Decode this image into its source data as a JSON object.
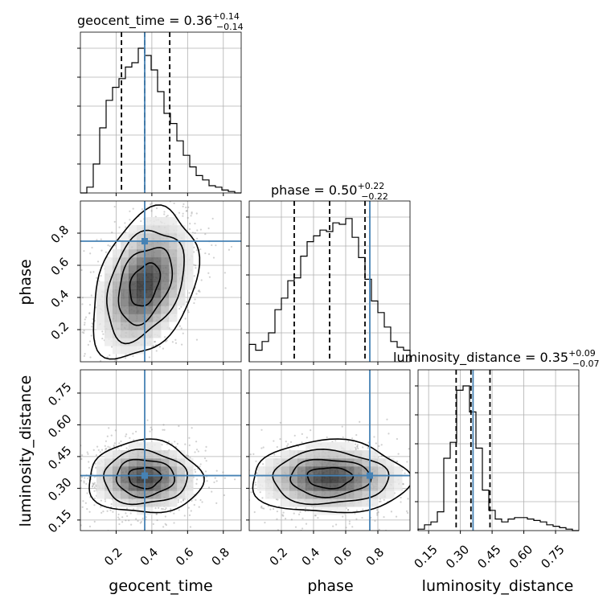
{
  "chart_data": {
    "type": "corner",
    "parameters": [
      "geocent_time",
      "phase",
      "luminosity_distance"
    ],
    "titles": [
      {
        "name": "geocent_time",
        "median": "0.36",
        "plus": "+0.14",
        "minus": "−0.14"
      },
      {
        "name": "phase",
        "median": "0.50",
        "plus": "+0.22",
        "minus": "−0.22"
      },
      {
        "name": "luminosity_distance",
        "median": "0.35",
        "plus": "+0.09",
        "minus": "−0.07"
      }
    ],
    "truths": [
      0.36,
      0.75,
      0.36
    ],
    "quantiles": [
      [
        0.23,
        0.36,
        0.5
      ],
      [
        0.28,
        0.5,
        0.72
      ],
      [
        0.28,
        0.35,
        0.44
      ]
    ],
    "ranges": [
      [
        0.0,
        0.9
      ],
      [
        0.0,
        1.0
      ],
      [
        0.1,
        0.86
      ]
    ],
    "ticks": [
      [
        "0.2",
        "0.4",
        "0.6",
        "0.8"
      ],
      [
        "0.2",
        "0.4",
        "0.6",
        "0.8"
      ],
      [
        "0.15",
        "0.30",
        "0.45",
        "0.60",
        "0.75"
      ]
    ],
    "histograms": [
      {
        "param": "geocent_time",
        "edges_start": 0.0,
        "bin_width": 0.036,
        "counts": [
          0.0,
          0.04,
          0.2,
          0.45,
          0.64,
          0.73,
          0.79,
          0.87,
          0.9,
          1.0,
          0.95,
          0.85,
          0.7,
          0.55,
          0.48,
          0.36,
          0.26,
          0.18,
          0.12,
          0.09,
          0.05,
          0.04,
          0.02,
          0.01,
          0.0
        ]
      },
      {
        "param": "phase",
        "edges_start": 0.0,
        "bin_width": 0.04,
        "counts": [
          0.12,
          0.08,
          0.14,
          0.2,
          0.36,
          0.44,
          0.56,
          0.58,
          0.73,
          0.83,
          0.87,
          0.91,
          0.9,
          0.96,
          0.95,
          0.99,
          0.86,
          0.72,
          0.57,
          0.42,
          0.34,
          0.24,
          0.14,
          0.1,
          0.08
        ]
      },
      {
        "param": "luminosity_distance",
        "edges_start": 0.1,
        "bin_width": 0.0304,
        "counts": [
          0.01,
          0.04,
          0.06,
          0.13,
          0.5,
          0.61,
          0.97,
          1.0,
          0.82,
          0.57,
          0.28,
          0.14,
          0.08,
          0.06,
          0.08,
          0.09,
          0.09,
          0.08,
          0.07,
          0.06,
          0.04,
          0.03,
          0.02,
          0.01,
          0.0
        ]
      }
    ],
    "scatter_2d": [
      {
        "x": "geocent_time",
        "y": "phase",
        "mean": [
          0.36,
          0.48
        ],
        "sd": [
          0.12,
          0.19
        ],
        "rho": 0.35
      },
      {
        "x": "geocent_time",
        "y": "luminosity_distance",
        "mean": [
          0.36,
          0.35
        ],
        "sd": [
          0.13,
          0.07
        ],
        "rho": 0.0
      },
      {
        "x": "phase",
        "y": "luminosity_distance",
        "mean": [
          0.5,
          0.35
        ],
        "sd": [
          0.2,
          0.07
        ],
        "rho": 0.0
      }
    ]
  }
}
